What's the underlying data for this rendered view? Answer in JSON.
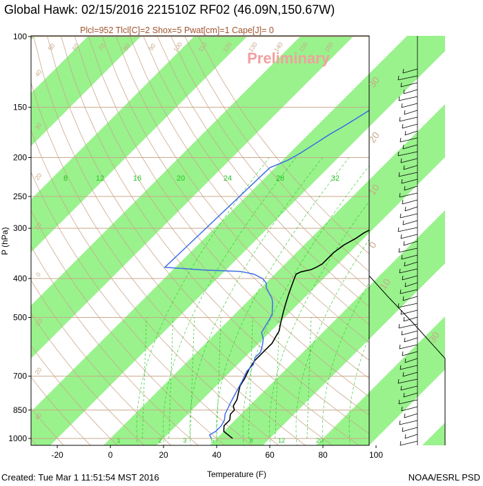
{
  "header": {
    "title": "Global Hawk: 02/15/2016 221510Z RF02 (46.09N,150.67W)",
    "subtitle": "Plcl=952 Tlcl[C]=2 Shox=5 Pwat[cm]=1 Cape[J]= 0"
  },
  "watermark": "Preliminary",
  "footer": {
    "created": "Created: Tue Mar  1 11:51:54 MST 2016",
    "credit": "NOAA/ESRL PSD"
  },
  "colors": {
    "isotherm_band": "#99f28c",
    "temperature": "#000000",
    "dewpoint": "#3a6ee8",
    "adiabat": "#c9a88a",
    "mixing_ratio": "#22c422",
    "watermark": "#f2a0a0"
  },
  "chart_data": {
    "type": "skew-t",
    "xlabel": "Temperature (F)",
    "ylabel": "P (hPa)",
    "x_ticks": [
      -20,
      0,
      20,
      40,
      60,
      80,
      100
    ],
    "y_ticks": [
      100,
      150,
      200,
      250,
      300,
      400,
      500,
      700,
      850,
      1000
    ],
    "ylim": [
      1000,
      100
    ],
    "y_scale": "log",
    "mixing_ratio_labels_upper": [
      "8",
      "12",
      "16",
      "20",
      "24",
      "28",
      "32"
    ],
    "mixing_ratio_labels_lower": [
      "1",
      "2",
      "3",
      "5",
      "8",
      "12",
      "20"
    ],
    "dry_adiabat_labels": [
      "50",
      "60",
      "70",
      "80",
      "90",
      "100",
      "110",
      "120",
      "130",
      "140",
      "150",
      "160"
    ],
    "left_adiabat_labels": [
      "40",
      "30",
      "20",
      "10",
      "0",
      "-10",
      "20",
      "40"
    ],
    "right_labels": [
      "30",
      "20",
      "10",
      "0",
      "10",
      "30"
    ],
    "series": [
      {
        "name": "temperature",
        "points": [
          [
            46,
            1000
          ],
          [
            43,
            980
          ],
          [
            40,
            960
          ],
          [
            38,
            930
          ],
          [
            38,
            900
          ],
          [
            36,
            870
          ],
          [
            36,
            850
          ],
          [
            34,
            830
          ],
          [
            33,
            800
          ],
          [
            31,
            770
          ],
          [
            29,
            740
          ],
          [
            28,
            710
          ],
          [
            27,
            690
          ],
          [
            26,
            670
          ],
          [
            25,
            640
          ],
          [
            25,
            610
          ],
          [
            25,
            580
          ],
          [
            24,
            560
          ],
          [
            23,
            540
          ],
          [
            21,
            520
          ],
          [
            19,
            500
          ],
          [
            17,
            480
          ],
          [
            15,
            460
          ],
          [
            13,
            440
          ],
          [
            11,
            420
          ],
          [
            9,
            400
          ],
          [
            8,
            390
          ],
          [
            9,
            385
          ],
          [
            12,
            380
          ],
          [
            13,
            375
          ],
          [
            14,
            368
          ],
          [
            14,
            360
          ],
          [
            14,
            345
          ],
          [
            15,
            330
          ],
          [
            17,
            318
          ],
          [
            18,
            308
          ],
          [
            20,
            298
          ],
          [
            21,
            288
          ],
          [
            22,
            278
          ],
          [
            24,
            268
          ],
          [
            25,
            258
          ],
          [
            25,
            248
          ],
          [
            26,
            240
          ],
          [
            27,
            233
          ],
          [
            28,
            228
          ],
          [
            30,
            222
          ],
          [
            32,
            215
          ],
          [
            34,
            208
          ],
          [
            36,
            200
          ],
          [
            38,
            194
          ],
          [
            40,
            188
          ],
          [
            42,
            182
          ],
          [
            44,
            176
          ],
          [
            46,
            170
          ],
          [
            48,
            164
          ],
          [
            50,
            158
          ],
          [
            52,
            152
          ],
          [
            54,
            146
          ],
          [
            56,
            140
          ],
          [
            58,
            135
          ],
          [
            60,
            131
          ],
          [
            62,
            127
          ],
          [
            64,
            123
          ],
          [
            66,
            120
          ],
          [
            68,
            115
          ],
          [
            70,
            111
          ],
          [
            72,
            108
          ],
          [
            74,
            104
          ],
          [
            75,
            101
          ]
        ]
      },
      {
        "name": "dewpoint",
        "points": [
          [
            38,
            1000
          ],
          [
            37,
            990
          ],
          [
            36,
            980
          ],
          [
            37,
            960
          ],
          [
            37,
            930
          ],
          [
            36,
            900
          ],
          [
            34,
            870
          ],
          [
            33,
            845
          ],
          [
            32,
            820
          ],
          [
            31,
            795
          ],
          [
            30,
            770
          ],
          [
            29,
            745
          ],
          [
            28,
            720
          ],
          [
            27,
            700
          ],
          [
            26,
            680
          ],
          [
            26,
            655
          ],
          [
            24,
            630
          ],
          [
            24,
            610
          ],
          [
            22,
            585
          ],
          [
            20,
            565
          ],
          [
            17,
            545
          ],
          [
            16,
            525
          ],
          [
            15,
            505
          ],
          [
            14,
            490
          ],
          [
            12,
            475
          ],
          [
            10,
            460
          ],
          [
            8,
            448
          ],
          [
            5,
            435
          ],
          [
            2,
            422
          ],
          [
            0,
            410
          ],
          [
            -3,
            400
          ],
          [
            -8,
            390
          ],
          [
            -14,
            384
          ],
          [
            -28,
            381
          ],
          [
            -44,
            375
          ],
          [
            -42,
            212
          ],
          [
            -38,
            203
          ],
          [
            -36,
            195
          ],
          [
            -34,
            185
          ],
          [
            -32,
            175
          ],
          [
            -30,
            168
          ],
          [
            -28,
            160
          ],
          [
            -26,
            152
          ],
          [
            -25,
            146
          ],
          [
            -23,
            140
          ],
          [
            -21,
            134
          ],
          [
            -20,
            128
          ],
          [
            -19,
            124
          ]
        ]
      }
    ]
  }
}
